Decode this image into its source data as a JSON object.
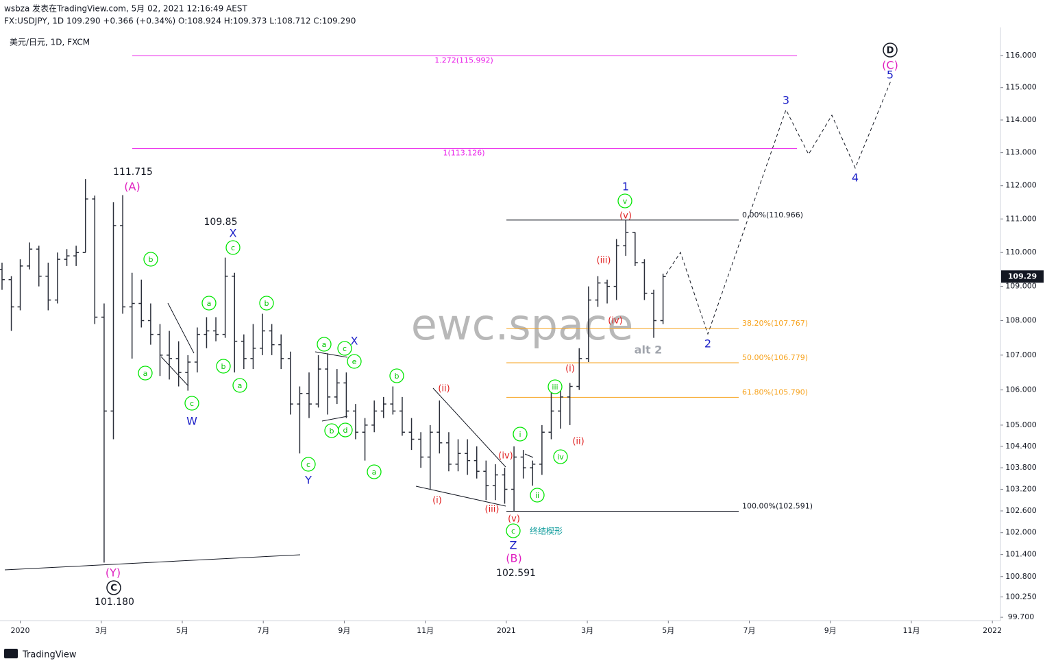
{
  "header": {
    "line1": "wsbza 发表在TradingView.com, 5月 02, 2021 12:16:49 AEST",
    "line2": "FX:USDJPY, 1D 109.290 +0.366 (+0.34%) O:108.924 H:109.373 L:108.712 C:109.290"
  },
  "footer": "TradingView",
  "chart_data": {
    "type": "ohlc",
    "title": "美元/日元, 1D, FXCM",
    "watermark": "ewc.space",
    "log_scale": true,
    "color": "#2a2e39",
    "x": [
      -0.45,
      -0.22,
      0.0,
      0.23,
      0.46,
      0.69,
      0.92,
      1.15,
      1.38,
      1.61,
      1.84,
      2.07,
      2.3,
      2.53,
      2.76,
      2.99,
      3.22,
      3.45,
      3.68,
      3.91,
      4.14,
      4.37,
      4.6,
      4.83,
      5.06,
      5.29,
      5.52,
      5.75,
      5.98,
      6.21,
      6.44,
      6.67,
      6.9,
      7.13,
      7.36,
      7.59,
      7.82,
      8.05,
      8.28,
      8.51,
      8.74,
      8.97,
      9.2,
      9.43,
      9.66,
      9.89,
      10.12,
      10.35,
      10.58,
      10.81,
      11.04,
      11.27,
      11.5,
      11.73,
      11.96,
      12.19,
      12.42,
      12.65,
      12.88,
      13.11,
      13.34,
      13.57,
      13.8,
      14.03,
      14.26,
      14.49,
      14.72,
      14.95,
      15.18,
      15.41,
      15.64,
      15.87
    ],
    "ohlc": [
      [
        109.5,
        109.7,
        108.9,
        109.2
      ],
      [
        109.2,
        109.3,
        107.7,
        108.4
      ],
      [
        108.4,
        109.8,
        108.3,
        109.6
      ],
      [
        109.6,
        110.3,
        109.5,
        110.1
      ],
      [
        110.1,
        110.2,
        109.0,
        109.3
      ],
      [
        109.3,
        109.7,
        108.3,
        108.6
      ],
      [
        108.6,
        110.0,
        108.5,
        109.8
      ],
      [
        109.8,
        110.1,
        109.6,
        109.9
      ],
      [
        109.9,
        110.2,
        109.6,
        110.0
      ],
      [
        110.0,
        112.2,
        110.0,
        111.6
      ],
      [
        111.6,
        111.7,
        107.9,
        108.1
      ],
      [
        108.1,
        108.5,
        101.18,
        105.4
      ],
      [
        105.4,
        111.5,
        104.6,
        110.8
      ],
      [
        110.8,
        111.715,
        108.2,
        108.4
      ],
      [
        108.4,
        109.4,
        106.9,
        108.5
      ],
      [
        108.5,
        109.2,
        107.8,
        108.0
      ],
      [
        108.0,
        108.5,
        107.3,
        107.6
      ],
      [
        107.6,
        107.9,
        106.4,
        107.0
      ],
      [
        107.0,
        107.7,
        106.3,
        106.9
      ],
      [
        106.9,
        107.4,
        106.1,
        106.5
      ],
      [
        106.5,
        107.0,
        105.98,
        106.8
      ],
      [
        106.8,
        107.8,
        106.5,
        107.6
      ],
      [
        107.6,
        108.1,
        107.2,
        107.7
      ],
      [
        107.7,
        108.1,
        107.4,
        107.6
      ],
      [
        107.6,
        109.85,
        107.5,
        109.3
      ],
      [
        109.3,
        109.4,
        106.5,
        107.4
      ],
      [
        107.4,
        107.6,
        106.6,
        106.9
      ],
      [
        106.9,
        107.9,
        106.6,
        107.2
      ],
      [
        107.2,
        108.2,
        107.0,
        107.7
      ],
      [
        107.7,
        107.9,
        107.0,
        107.3
      ],
      [
        107.3,
        107.6,
        106.6,
        106.9
      ],
      [
        106.9,
        107.1,
        105.3,
        105.6
      ],
      [
        105.6,
        106.1,
        104.2,
        105.9
      ],
      [
        105.9,
        106.5,
        105.2,
        105.6
      ],
      [
        105.6,
        107.0,
        105.5,
        106.6
      ],
      [
        106.6,
        107.05,
        105.3,
        105.8
      ],
      [
        105.8,
        106.6,
        105.6,
        106.2
      ],
      [
        106.2,
        106.5,
        105.2,
        105.4
      ],
      [
        105.4,
        105.6,
        104.6,
        104.8
      ],
      [
        104.8,
        105.2,
        104.0,
        105.0
      ],
      [
        105.0,
        105.7,
        104.8,
        105.4
      ],
      [
        105.4,
        105.8,
        105.2,
        105.6
      ],
      [
        105.6,
        106.1,
        105.3,
        105.4
      ],
      [
        105.4,
        105.8,
        104.7,
        104.8
      ],
      [
        104.8,
        105.2,
        104.3,
        104.6
      ],
      [
        104.6,
        104.8,
        103.8,
        104.1
      ],
      [
        104.1,
        105.0,
        103.2,
        104.8
      ],
      [
        104.8,
        105.7,
        104.2,
        104.5
      ],
      [
        104.5,
        104.8,
        103.7,
        103.9
      ],
      [
        103.9,
        104.6,
        103.7,
        104.2
      ],
      [
        104.2,
        104.6,
        103.6,
        104.0
      ],
      [
        104.0,
        104.4,
        103.5,
        103.7
      ],
      [
        103.7,
        104.0,
        102.9,
        103.3
      ],
      [
        103.3,
        103.9,
        102.9,
        103.6
      ],
      [
        103.6,
        103.8,
        102.8,
        103.2
      ],
      [
        103.2,
        104.4,
        102.591,
        104.1
      ],
      [
        104.1,
        104.3,
        103.5,
        103.8
      ],
      [
        103.8,
        104.0,
        103.3,
        103.9
      ],
      [
        103.9,
        105.0,
        103.6,
        104.8
      ],
      [
        104.8,
        106.2,
        104.6,
        105.4
      ],
      [
        105.4,
        106.0,
        104.9,
        105.8
      ],
      [
        105.8,
        106.2,
        105.0,
        106.1
      ],
      [
        106.1,
        107.2,
        106.0,
        106.9
      ],
      [
        106.9,
        109.0,
        106.8,
        108.6
      ],
      [
        108.6,
        109.3,
        108.4,
        109.1
      ],
      [
        109.1,
        109.2,
        108.5,
        109.0
      ],
      [
        109.0,
        110.4,
        108.6,
        110.2
      ],
      [
        110.2,
        110.966,
        109.9,
        110.6
      ],
      [
        110.6,
        110.6,
        109.6,
        109.7
      ],
      [
        109.7,
        109.8,
        108.6,
        108.8
      ],
      [
        108.8,
        108.9,
        107.5,
        108.0
      ],
      [
        108.0,
        109.373,
        107.9,
        109.29
      ]
    ],
    "xlim": [
      -0.5,
      24.2
    ],
    "xticks": [
      {
        "value": 0,
        "label": "2020"
      },
      {
        "value": 2,
        "label": "3月"
      },
      {
        "value": 4,
        "label": "5月"
      },
      {
        "value": 6,
        "label": "7月"
      },
      {
        "value": 8,
        "label": "9月"
      },
      {
        "value": 10,
        "label": "11月"
      },
      {
        "value": 12,
        "label": "2021"
      },
      {
        "value": 14,
        "label": "3月"
      },
      {
        "value": 16,
        "label": "5月"
      },
      {
        "value": 18,
        "label": "7月"
      },
      {
        "value": 20,
        "label": "9月"
      },
      {
        "value": 22,
        "label": "11月"
      },
      {
        "value": 24,
        "label": "2022"
      }
    ],
    "ylim": [
      99.61,
      116.88
    ],
    "yticks": [
      {
        "value": 99.7,
        "label": "99.700"
      },
      {
        "value": 100.25,
        "label": "100.250"
      },
      {
        "value": 100.8,
        "label": "100.800"
      },
      {
        "value": 101.4,
        "label": "101.400"
      },
      {
        "value": 102,
        "label": "102.000"
      },
      {
        "value": 102.6,
        "label": "102.600"
      },
      {
        "value": 103.2,
        "label": "103.200"
      },
      {
        "value": 103.8,
        "label": "103.800"
      },
      {
        "value": 104.4,
        "label": "104.400"
      },
      {
        "value": 105,
        "label": "105.000"
      },
      {
        "value": 106,
        "label": "106.000"
      },
      {
        "value": 107,
        "label": "107.000"
      },
      {
        "value": 108,
        "label": "108.000"
      },
      {
        "value": 109,
        "label": "109.000"
      },
      {
        "value": 110,
        "label": "110.000"
      },
      {
        "value": 111,
        "label": "111.000"
      },
      {
        "value": 112,
        "label": "112.000"
      },
      {
        "value": 113,
        "label": "113.000"
      },
      {
        "value": 114,
        "label": "114.000"
      },
      {
        "value": 115,
        "label": "115.000"
      },
      {
        "value": 116,
        "label": "116.000"
      }
    ],
    "fib_levels": [
      {
        "value": 115.992,
        "label": "1.272(115.992)",
        "color": "#e91ee9"
      },
      {
        "value": 113.126,
        "label": "1(113.126)",
        "color": "#e91ee9"
      },
      {
        "value": 110.966,
        "label": "0.00%(110.966)",
        "color": "#131722"
      },
      {
        "value": 107.767,
        "label": "38.20%(107.767)",
        "color": "#f7a21b"
      },
      {
        "value": 106.779,
        "label": "50.00%(106.779)",
        "color": "#f7a21b"
      },
      {
        "value": 105.79,
        "label": "61.80%(105.790)",
        "color": "#f7a21b"
      },
      {
        "value": 102.591,
        "label": "100.00%(102.591)",
        "color": "#131722"
      }
    ],
    "annotations": [
      {
        "text": "b",
        "style": "green-circle"
      },
      {
        "text": "a",
        "style": "green-circle"
      },
      {
        "text": "c",
        "style": "green-circle"
      },
      {
        "text": "a",
        "style": "green-circle"
      },
      {
        "text": "b",
        "style": "green-circle"
      },
      {
        "text": "a",
        "style": "green-circle"
      },
      {
        "text": "b",
        "style": "green-circle"
      },
      {
        "text": "c",
        "style": "green-circle"
      },
      {
        "text": "c",
        "style": "green-circle"
      },
      {
        "text": "a",
        "style": "green-circle"
      },
      {
        "text": "c",
        "style": "green-circle"
      },
      {
        "text": "e",
        "style": "green-circle"
      },
      {
        "text": "b",
        "style": "green-circle"
      },
      {
        "text": "d",
        "style": "green-circle"
      },
      {
        "text": "a",
        "style": "green-circle"
      },
      {
        "text": "b",
        "style": "green-circle"
      },
      {
        "text": "c",
        "style": "green-circle"
      },
      {
        "text": "i",
        "style": "green-circle"
      },
      {
        "text": "ii",
        "style": "green-circle"
      },
      {
        "text": "iii",
        "style": "green-circle"
      },
      {
        "text": "iv",
        "style": "green-circle"
      },
      {
        "text": "v",
        "style": "green-circle"
      },
      {
        "text": "(ii)",
        "style": "red"
      },
      {
        "text": "(i)",
        "style": "red"
      },
      {
        "text": "(iv)",
        "style": "red"
      },
      {
        "text": "(iii)",
        "style": "red"
      },
      {
        "text": "(v)",
        "style": "red"
      },
      {
        "text": "(i)",
        "style": "red"
      },
      {
        "text": "(ii)",
        "style": "red"
      },
      {
        "text": "(iii)",
        "style": "red"
      },
      {
        "text": "(iv)",
        "style": "red"
      },
      {
        "text": "(v)",
        "style": "red"
      },
      {
        "text": "W",
        "style": "blue"
      },
      {
        "text": "X",
        "style": "blue"
      },
      {
        "text": "Y",
        "style": "blue"
      },
      {
        "text": "X",
        "style": "blue"
      },
      {
        "text": "Z",
        "style": "blue"
      },
      {
        "text": "1",
        "style": "blue"
      },
      {
        "text": "3",
        "style": "blue"
      },
      {
        "text": "2",
        "style": "blue"
      },
      {
        "text": "4",
        "style": "blue"
      },
      {
        "text": "5",
        "style": "blue"
      },
      {
        "text": "(A)",
        "style": "magenta"
      },
      {
        "text": "(Y)",
        "style": "magenta"
      },
      {
        "text": "(B)",
        "style": "magenta"
      },
      {
        "text": "(C)",
        "style": "magenta"
      },
      {
        "text": "111.715",
        "style": "black"
      },
      {
        "text": "109.85",
        "style": "black"
      },
      {
        "text": "102.591",
        "style": "black"
      },
      {
        "text": "101.180",
        "style": "black"
      },
      {
        "text": "C",
        "style": "black-circle"
      },
      {
        "text": "D",
        "style": "black-circle"
      },
      {
        "text": "alt 2",
        "style": "gray"
      },
      {
        "text": "终结楔形",
        "style": "teal"
      }
    ]
  }
}
